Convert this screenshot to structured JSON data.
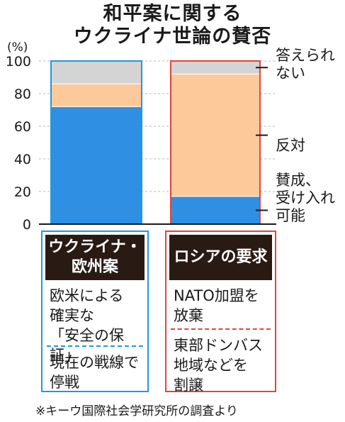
{
  "title_line1": "和平案に関する",
  "title_line2": "ウクライナ世論の賛否",
  "chart_data": {
    "type": "bar",
    "stacked": true,
    "unit": "(%)",
    "yticks": [
      0,
      20,
      40,
      60,
      80,
      100
    ],
    "ylim": [
      0,
      100
    ],
    "categories": [
      "ウクライナ・欧州案",
      "ロシアの要求"
    ],
    "series": [
      {
        "name": "賛成、受け入れ可能",
        "color": "#2f8fe3",
        "values": [
          72,
          17
        ]
      },
      {
        "name": "反対",
        "color": "#fdc99a",
        "values": [
          14,
          75
        ]
      },
      {
        "name": "答えられない",
        "color": "#d4d4d4",
        "values": [
          14,
          8
        ]
      }
    ]
  },
  "legend_labels": {
    "no_answer": "答えられ\nない",
    "oppose": "反対",
    "support": "賛成、\n受け入れ\n可能"
  },
  "colors": {
    "ukraine_outline": "#1e9bd8",
    "russia_outline": "#e0463a",
    "header_bg": "#2a1a14"
  },
  "ukraine_box": {
    "header": "ウクライナ・\n欧州案",
    "items": [
      "欧米による\n確実な\n「安全の保証」",
      "現在の戦線で\n停戦"
    ]
  },
  "russia_box": {
    "header": "ロシアの要求",
    "items": [
      "NATO加盟を\n放棄",
      "東部ドンバス\n地域などを\n割譲"
    ]
  },
  "footnote": "※キーウ国際社会学研究所の調査より"
}
